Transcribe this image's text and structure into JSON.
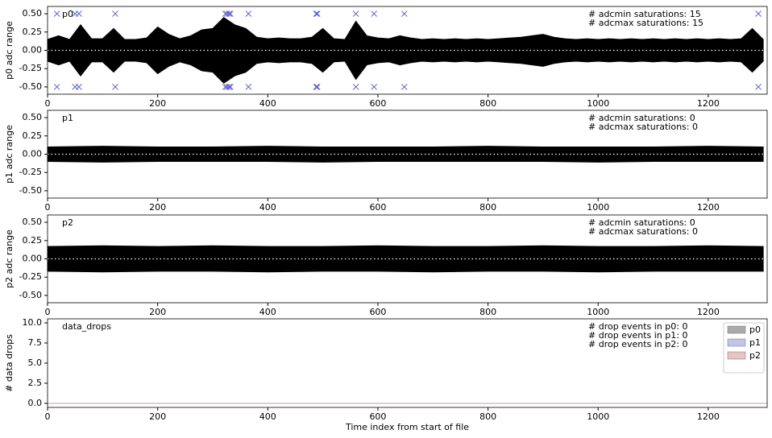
{
  "chart_data": [
    {
      "type": "band",
      "panel_label": "p0",
      "ylabel": "p0 adc range",
      "annotations": [
        "# adcmin saturations: 15",
        "# adcmax saturations: 15"
      ],
      "color": "#000000",
      "x": [
        0,
        20,
        40,
        60,
        80,
        100,
        120,
        140,
        160,
        180,
        200,
        220,
        240,
        260,
        280,
        300,
        320,
        340,
        360,
        380,
        400,
        420,
        440,
        460,
        480,
        500,
        520,
        540,
        560,
        580,
        600,
        620,
        640,
        660,
        680,
        700,
        720,
        740,
        760,
        780,
        800,
        820,
        840,
        860,
        880,
        900,
        920,
        940,
        960,
        980,
        1000,
        1020,
        1040,
        1060,
        1080,
        1100,
        1120,
        1140,
        1160,
        1180,
        1200,
        1220,
        1240,
        1260,
        1280,
        1300
      ],
      "upper": [
        0.15,
        0.2,
        0.15,
        0.35,
        0.16,
        0.16,
        0.3,
        0.15,
        0.15,
        0.17,
        0.32,
        0.22,
        0.16,
        0.2,
        0.28,
        0.3,
        0.45,
        0.35,
        0.3,
        0.18,
        0.16,
        0.17,
        0.16,
        0.16,
        0.18,
        0.3,
        0.16,
        0.15,
        0.4,
        0.2,
        0.17,
        0.16,
        0.2,
        0.17,
        0.15,
        0.16,
        0.15,
        0.16,
        0.15,
        0.16,
        0.15,
        0.16,
        0.17,
        0.18,
        0.2,
        0.22,
        0.18,
        0.16,
        0.15,
        0.16,
        0.15,
        0.16,
        0.15,
        0.16,
        0.15,
        0.16,
        0.15,
        0.16,
        0.15,
        0.16,
        0.15,
        0.16,
        0.15,
        0.16,
        0.3,
        0.15
      ],
      "lower": [
        -0.15,
        -0.2,
        -0.15,
        -0.35,
        -0.16,
        -0.16,
        -0.3,
        -0.15,
        -0.15,
        -0.17,
        -0.32,
        -0.22,
        -0.16,
        -0.2,
        -0.28,
        -0.3,
        -0.45,
        -0.35,
        -0.3,
        -0.18,
        -0.16,
        -0.17,
        -0.16,
        -0.16,
        -0.18,
        -0.3,
        -0.16,
        -0.15,
        -0.4,
        -0.2,
        -0.17,
        -0.16,
        -0.2,
        -0.17,
        -0.15,
        -0.16,
        -0.15,
        -0.16,
        -0.15,
        -0.16,
        -0.15,
        -0.16,
        -0.17,
        -0.18,
        -0.2,
        -0.22,
        -0.18,
        -0.16,
        -0.15,
        -0.16,
        -0.15,
        -0.16,
        -0.15,
        -0.16,
        -0.15,
        -0.16,
        -0.15,
        -0.16,
        -0.15,
        -0.16,
        -0.15,
        -0.16,
        -0.15,
        -0.16,
        -0.3,
        -0.15
      ],
      "markers": [
        {
          "color": "#5a5ac8",
          "x": [
            17,
            50,
            57,
            123,
            323,
            326,
            330,
            332,
            365,
            488,
            490,
            560,
            593,
            648,
            1291
          ],
          "values": [
            0.5,
            0.5,
            0.5,
            0.5,
            0.5,
            0.5,
            0.5,
            0.5,
            0.5,
            0.5,
            0.5,
            0.5,
            0.5,
            0.5,
            0.5
          ]
        },
        {
          "color": "#5a5ac8",
          "x": [
            17,
            50,
            57,
            123,
            323,
            326,
            330,
            332,
            365,
            488,
            490,
            560,
            593,
            648,
            1291
          ],
          "values": [
            -0.5,
            -0.5,
            -0.5,
            -0.5,
            -0.5,
            -0.5,
            -0.5,
            -0.5,
            -0.5,
            -0.5,
            -0.5,
            -0.5,
            -0.5,
            -0.5,
            -0.5
          ]
        }
      ],
      "xlim": [
        0,
        1307
      ],
      "xticks": [
        0,
        200,
        400,
        600,
        800,
        1000,
        1200
      ],
      "ylim": [
        -0.6,
        0.6
      ],
      "yticks": [
        {
          "value": -0.5,
          "label": "-0.50"
        },
        {
          "value": -0.25,
          "label": "-0.25"
        },
        {
          "value": 0,
          "label": "0.00"
        },
        {
          "value": 0.25,
          "label": "0.25"
        },
        {
          "value": 0.5,
          "label": "0.50"
        }
      ]
    },
    {
      "type": "band",
      "panel_label": "p1",
      "ylabel": "p1 adc range",
      "annotations": [
        "# adcmin saturations: 0",
        "# adcmax saturations: 0"
      ],
      "color": "#000000",
      "x": [
        0,
        100,
        200,
        300,
        400,
        500,
        600,
        700,
        800,
        900,
        1000,
        1100,
        1200,
        1300
      ],
      "upper": [
        0.1,
        0.11,
        0.1,
        0.1,
        0.11,
        0.1,
        0.1,
        0.1,
        0.11,
        0.1,
        0.1,
        0.1,
        0.11,
        0.1
      ],
      "lower": [
        -0.1,
        -0.11,
        -0.1,
        -0.1,
        -0.1,
        -0.11,
        -0.1,
        -0.1,
        -0.1,
        -0.1,
        -0.11,
        -0.1,
        -0.1,
        -0.1
      ],
      "xlim": [
        0,
        1307
      ],
      "xticks": [
        0,
        200,
        400,
        600,
        800,
        1000,
        1200
      ],
      "ylim": [
        -0.6,
        0.6
      ],
      "yticks": [
        {
          "value": -0.5,
          "label": "-0.50"
        },
        {
          "value": -0.25,
          "label": "-0.25"
        },
        {
          "value": 0,
          "label": "0.00"
        },
        {
          "value": 0.25,
          "label": "0.25"
        },
        {
          "value": 0.5,
          "label": "0.50"
        }
      ]
    },
    {
      "type": "band",
      "panel_label": "p2",
      "ylabel": "p2 adc range",
      "annotations": [
        "# adcmin saturations: 0",
        "# adcmax saturations: 0"
      ],
      "color": "#000000",
      "x": [
        0,
        100,
        200,
        300,
        400,
        500,
        600,
        700,
        800,
        900,
        1000,
        1100,
        1200,
        1300
      ],
      "upper": [
        0.17,
        0.18,
        0.17,
        0.18,
        0.17,
        0.17,
        0.18,
        0.17,
        0.17,
        0.18,
        0.17,
        0.17,
        0.18,
        0.17
      ],
      "lower": [
        -0.17,
        -0.18,
        -0.17,
        -0.17,
        -0.18,
        -0.17,
        -0.17,
        -0.18,
        -0.17,
        -0.17,
        -0.18,
        -0.17,
        -0.17,
        -0.17
      ],
      "xlim": [
        0,
        1307
      ],
      "xticks": [
        0,
        200,
        400,
        600,
        800,
        1000,
        1200
      ],
      "ylim": [
        -0.6,
        0.6
      ],
      "yticks": [
        {
          "value": -0.5,
          "label": "-0.50"
        },
        {
          "value": -0.25,
          "label": "-0.25"
        },
        {
          "value": 0,
          "label": "0.00"
        },
        {
          "value": 0.25,
          "label": "0.25"
        },
        {
          "value": 0.5,
          "label": "0.50"
        }
      ]
    },
    {
      "type": "line",
      "panel_label": "data_drops",
      "ylabel": "# data drops",
      "xlabel": "Time index from start of file",
      "annotations": [
        "# drop events in p0: 0",
        "# drop events in p1: 0",
        "# drop events in p2: 0"
      ],
      "x": [
        0,
        1307
      ],
      "series": [
        {
          "name": "p0",
          "color": "#aaaaaa",
          "values": [
            0,
            0
          ]
        },
        {
          "name": "p1",
          "color": "#c4c4ea",
          "values": [
            0,
            0
          ]
        },
        {
          "name": "p2",
          "color": "#e6c4c4",
          "values": [
            0,
            0
          ]
        }
      ],
      "legend": "upper right",
      "xlim": [
        0,
        1307
      ],
      "xticks": [
        0,
        200,
        400,
        600,
        800,
        1000,
        1200
      ],
      "ylim": [
        -0.5,
        10.5
      ],
      "yticks": [
        {
          "value": 0,
          "label": "0.0"
        },
        2.5,
        {
          "value": 5,
          "label": "5.0"
        },
        7.5,
        {
          "value": 10,
          "label": "10.0"
        }
      ]
    }
  ]
}
